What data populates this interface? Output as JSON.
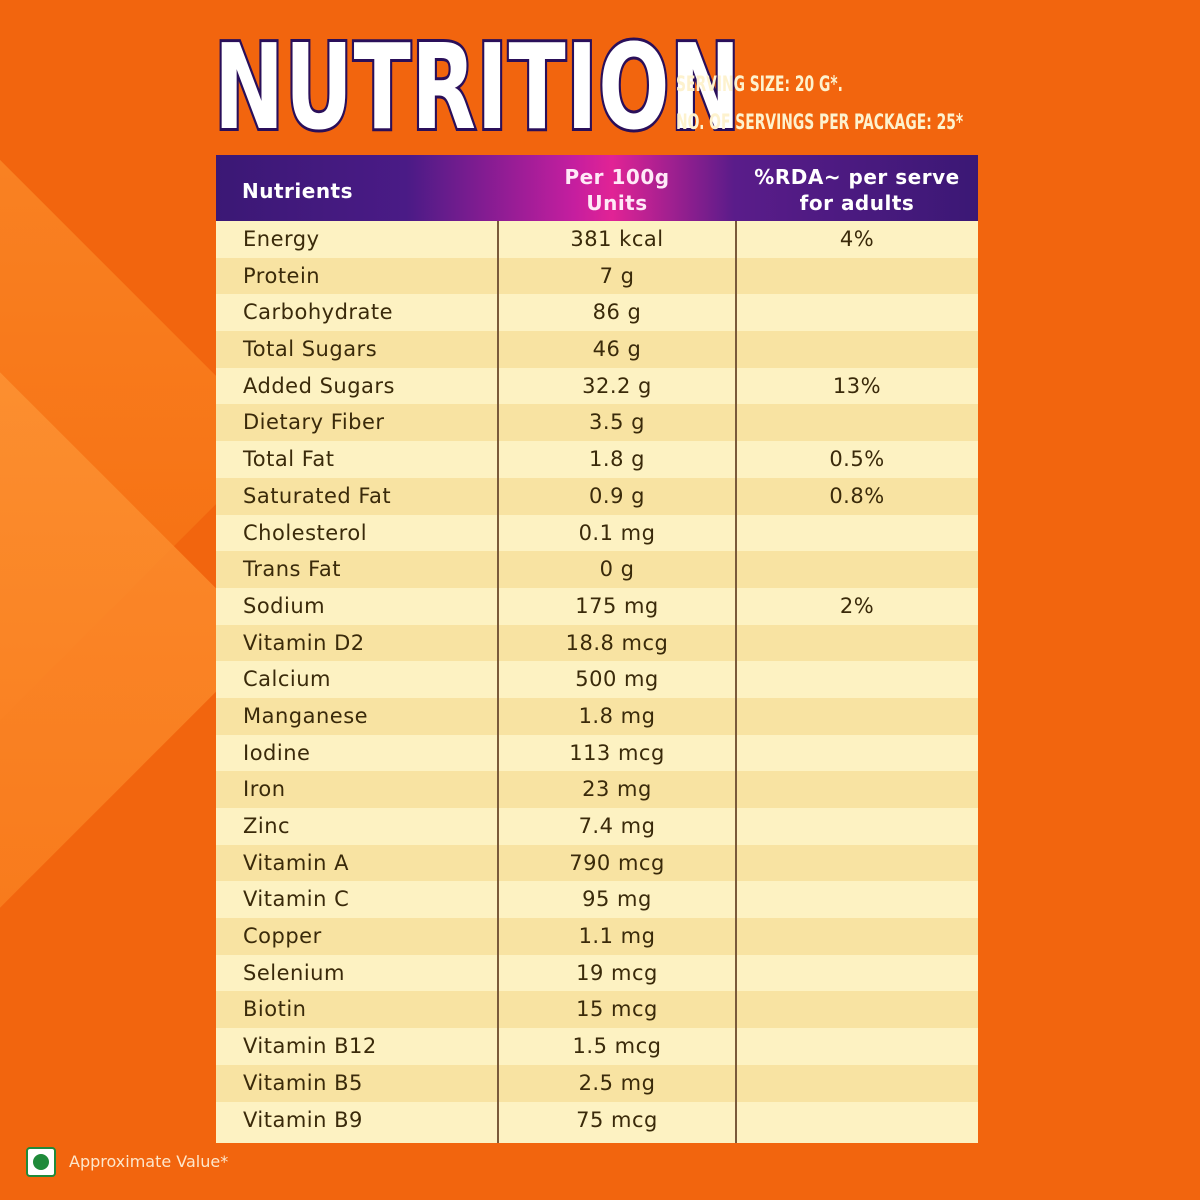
{
  "title": "NUTRITION",
  "serving_size": "SERVING SIZE: 20 G*.",
  "servings_per_package": "NO. OF SERVINGS PER PACKAGE: 25*",
  "table": {
    "headers": {
      "nutrients": "Nutrients",
      "per100_line1": "Per 100g",
      "per100_line2": "Units",
      "rda_line1": "%RDA~ per serve",
      "rda_line2": "for adults"
    },
    "rows": [
      {
        "name": "Energy",
        "value": "381 kcal",
        "rda": "4%"
      },
      {
        "name": "Protein",
        "value": "7 g",
        "rda": ""
      },
      {
        "name": "Carbohydrate",
        "value": "86 g",
        "rda": ""
      },
      {
        "name": "Total Sugars",
        "value": "46 g",
        "rda": ""
      },
      {
        "name": "Added Sugars",
        "value": "32.2 g",
        "rda": "13%"
      },
      {
        "name": "Dietary Fiber",
        "value": "3.5 g",
        "rda": ""
      },
      {
        "name": "Total Fat",
        "value": "1.8 g",
        "rda": "0.5%"
      },
      {
        "name": "Saturated Fat",
        "value": "0.9 g",
        "rda": "0.8%"
      },
      {
        "name": "Cholesterol",
        "value": "0.1 mg",
        "rda": ""
      },
      {
        "name": "Trans Fat",
        "value": "0 g",
        "rda": ""
      },
      {
        "name": "Sodium",
        "value": "175 mg",
        "rda": "2%"
      },
      {
        "name": "Vitamin D2",
        "value": "18.8 mcg",
        "rda": ""
      },
      {
        "name": "Calcium",
        "value": "500 mg",
        "rda": ""
      },
      {
        "name": "Manganese",
        "value": "1.8 mg",
        "rda": ""
      },
      {
        "name": "Iodine",
        "value": "113 mcg",
        "rda": ""
      },
      {
        "name": "Iron",
        "value": "23 mg",
        "rda": ""
      },
      {
        "name": "Zinc",
        "value": "7.4 mg",
        "rda": ""
      },
      {
        "name": "Vitamin A",
        "value": "790 mcg",
        "rda": ""
      },
      {
        "name": "Vitamin C",
        "value": "95 mg",
        "rda": ""
      },
      {
        "name": "Copper",
        "value": "1.1 mg",
        "rda": ""
      },
      {
        "name": "Selenium",
        "value": "19 mcg",
        "rda": ""
      },
      {
        "name": "Biotin",
        "value": "15 mcg",
        "rda": ""
      },
      {
        "name": "Vitamin B12",
        "value": "1.5 mcg",
        "rda": ""
      },
      {
        "name": "Vitamin B5",
        "value": "2.5 mg",
        "rda": ""
      },
      {
        "name": "Vitamin B9",
        "value": "75 mcg",
        "rda": ""
      }
    ]
  },
  "footnote": "Approximate Value*",
  "icons": {
    "veg_mark": "veg-symbol-icon"
  },
  "colors": {
    "background": "#f2650e",
    "header_dark": "#3b1875",
    "header_pink": "#e12395",
    "row_light": "#fdf2c2",
    "row_dark": "#f8e3a2"
  }
}
